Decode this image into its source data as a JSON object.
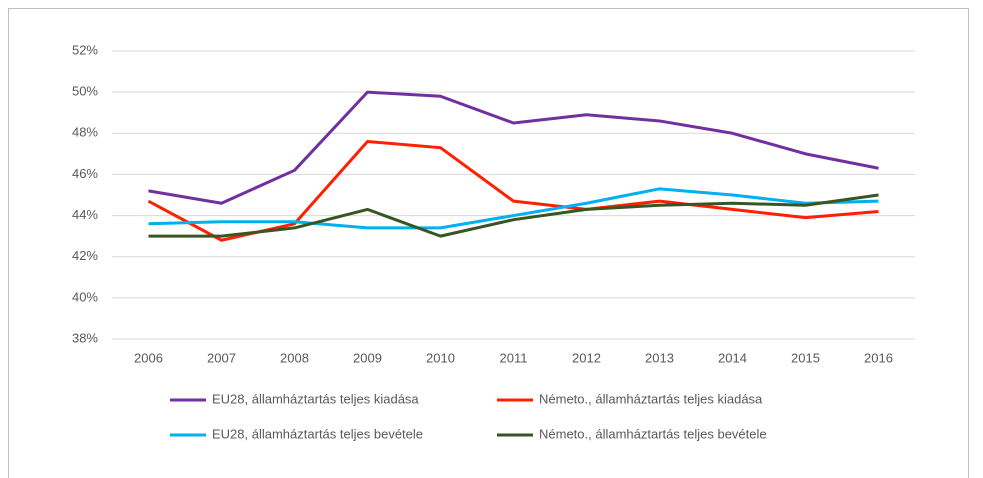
{
  "chart_data": {
    "type": "line",
    "categories": [
      "2006",
      "2007",
      "2008",
      "2009",
      "2010",
      "2011",
      "2012",
      "2013",
      "2014",
      "2015",
      "2016"
    ],
    "series": [
      {
        "name": "EU28, államháztartás teljes kiadása",
        "color": "#7030a0",
        "values": [
          45.2,
          44.6,
          46.2,
          50.0,
          49.8,
          48.5,
          48.9,
          48.6,
          48.0,
          47.0,
          46.3
        ]
      },
      {
        "name": "Németo., államháztartás teljes kiadása",
        "color": "#ff2000",
        "values": [
          44.7,
          42.8,
          43.6,
          47.6,
          47.3,
          44.7,
          44.3,
          44.7,
          44.3,
          43.9,
          44.2
        ]
      },
      {
        "name": "EU28, államháztartás teljes bevétele",
        "color": "#00b0f0",
        "values": [
          43.6,
          43.7,
          43.7,
          43.4,
          43.4,
          44.0,
          44.6,
          45.3,
          45.0,
          44.6,
          44.7
        ]
      },
      {
        "name": "Németo., államháztartás teljes bevétele",
        "color": "#375623",
        "values": [
          43.0,
          43.0,
          43.4,
          44.3,
          43.0,
          43.8,
          44.3,
          44.5,
          44.6,
          44.5,
          45.0
        ]
      }
    ],
    "ylim": [
      38,
      52
    ],
    "yticks": [
      {
        "value": 38,
        "label": "38%"
      },
      {
        "value": 40,
        "label": "40%"
      },
      {
        "value": 42,
        "label": "42%"
      },
      {
        "value": 44,
        "label": "44%"
      },
      {
        "value": 46,
        "label": "46%"
      },
      {
        "value": 48,
        "label": "48%"
      },
      {
        "value": 50,
        "label": "50%"
      },
      {
        "value": 52,
        "label": "52%"
      }
    ],
    "grid": true,
    "legend": "bottom"
  }
}
